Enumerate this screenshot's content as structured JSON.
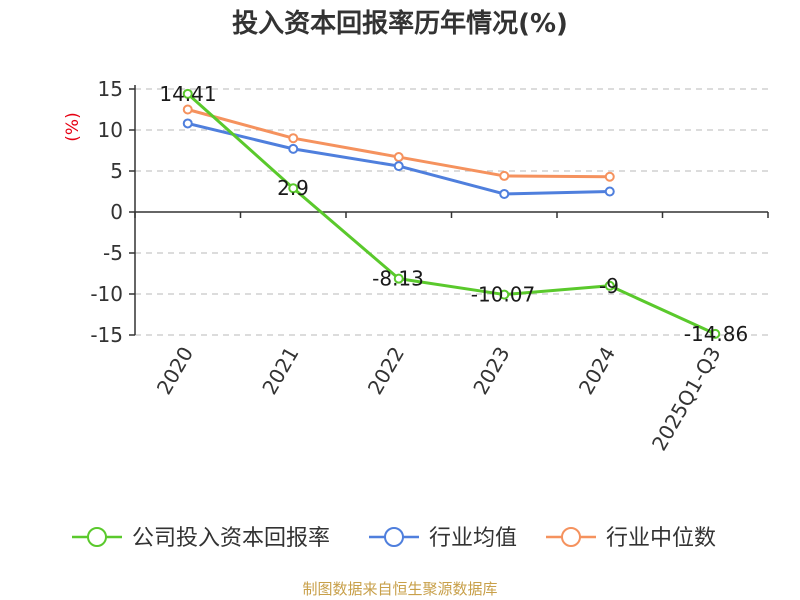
{
  "chart_data": {
    "type": "line",
    "title": "投入资本回报率历年情况(%)",
    "ylabel": "(%)",
    "xlabel": "",
    "categories": [
      "2020",
      "2021",
      "2022",
      "2023",
      "2024",
      "2025Q1-Q3"
    ],
    "ylim": [
      -15,
      15
    ],
    "yticks": [
      15,
      10,
      5,
      0,
      -5,
      -10,
      -15
    ],
    "ytick_labels": [
      "15",
      "10",
      "5",
      "0",
      "-5",
      "-10",
      "-15"
    ],
    "grid": true,
    "legend_position": "bottom",
    "series": [
      {
        "name": "公司投入资本回报率",
        "color": "#5ac92c",
        "values": [
          14.41,
          2.9,
          -8.13,
          -10.07,
          -9,
          -14.86
        ],
        "labels": [
          "14.41",
          "2.9",
          "-8.13",
          "-10.07",
          "-9",
          "-14.86"
        ]
      },
      {
        "name": "行业均值",
        "color": "#4f7fdd",
        "values": [
          10.8,
          7.7,
          5.6,
          2.2,
          2.5,
          null
        ]
      },
      {
        "name": "行业中位数",
        "color": "#f5925e",
        "values": [
          12.5,
          9.0,
          6.7,
          4.4,
          4.3,
          null
        ]
      }
    ]
  },
  "source": "制图数据来自恒生聚源数据库"
}
